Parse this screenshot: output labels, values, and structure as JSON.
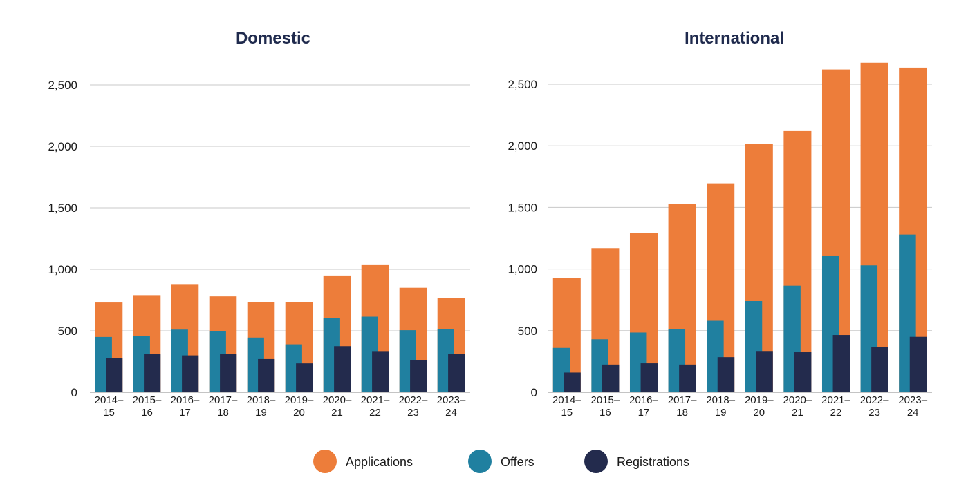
{
  "chart_data": [
    {
      "type": "bar",
      "title": "Domestic",
      "categories": [
        [
          "2014–",
          "15"
        ],
        [
          "2015–",
          "16"
        ],
        [
          "2016–",
          "17"
        ],
        [
          "2017–",
          "18"
        ],
        [
          "2018–",
          "19"
        ],
        [
          "2019–",
          "20"
        ],
        [
          "2020–",
          "21"
        ],
        [
          "2021–",
          "22"
        ],
        [
          "2022–",
          "23"
        ],
        [
          "2023–",
          "24"
        ]
      ],
      "series": [
        {
          "name": "Applications",
          "color": "#ed7d3a",
          "values": [
            730,
            790,
            880,
            780,
            735,
            735,
            950,
            1040,
            850,
            765
          ]
        },
        {
          "name": "Offers",
          "color": "#2080a0",
          "values": [
            450,
            460,
            510,
            500,
            445,
            390,
            605,
            615,
            505,
            515
          ]
        },
        {
          "name": "Registrations",
          "color": "#232b4d",
          "values": [
            280,
            310,
            300,
            310,
            270,
            235,
            375,
            335,
            260,
            310
          ]
        }
      ],
      "yticks": [
        0,
        500,
        1000,
        1500,
        2000,
        2500
      ],
      "ytick_labels": [
        "0",
        "500",
        "1,000",
        "1,500",
        "2,000",
        "2,500"
      ],
      "ylim": [
        0,
        2500
      ],
      "xlabel": "",
      "ylabel": "",
      "grid": true
    },
    {
      "type": "bar",
      "title": "International",
      "categories": [
        [
          "2014–",
          "15"
        ],
        [
          "2015–",
          "16"
        ],
        [
          "2016–",
          "17"
        ],
        [
          "2017–",
          "18"
        ],
        [
          "2018–",
          "19"
        ],
        [
          "2019–",
          "20"
        ],
        [
          "2020–",
          "21"
        ],
        [
          "2021–",
          "22"
        ],
        [
          "2022–",
          "23"
        ],
        [
          "2023–",
          "24"
        ]
      ],
      "series": [
        {
          "name": "Applications",
          "color": "#ed7d3a",
          "values": [
            930,
            1170,
            1290,
            1530,
            1695,
            2015,
            2125,
            2620,
            2675,
            2635
          ]
        },
        {
          "name": "Offers",
          "color": "#2080a0",
          "values": [
            360,
            430,
            485,
            515,
            580,
            740,
            865,
            1110,
            1030,
            1280
          ]
        },
        {
          "name": "Registrations",
          "color": "#232b4d",
          "values": [
            160,
            225,
            235,
            225,
            285,
            335,
            325,
            465,
            370,
            450
          ]
        }
      ],
      "yticks": [
        0,
        500,
        1000,
        1500,
        2000,
        2500
      ],
      "ytick_labels": [
        "0",
        "500",
        "1,000",
        "1,500",
        "2,000",
        "2,500"
      ],
      "ylim": [
        0,
        2500
      ],
      "xlabel": "",
      "ylabel": "",
      "grid": true
    }
  ],
  "legend": {
    "position": "bottom-center",
    "items": [
      {
        "label": "Applications",
        "color": "#ed7d3a"
      },
      {
        "label": "Offers",
        "color": "#2080a0"
      },
      {
        "label": "Registrations",
        "color": "#232b4d"
      }
    ]
  }
}
